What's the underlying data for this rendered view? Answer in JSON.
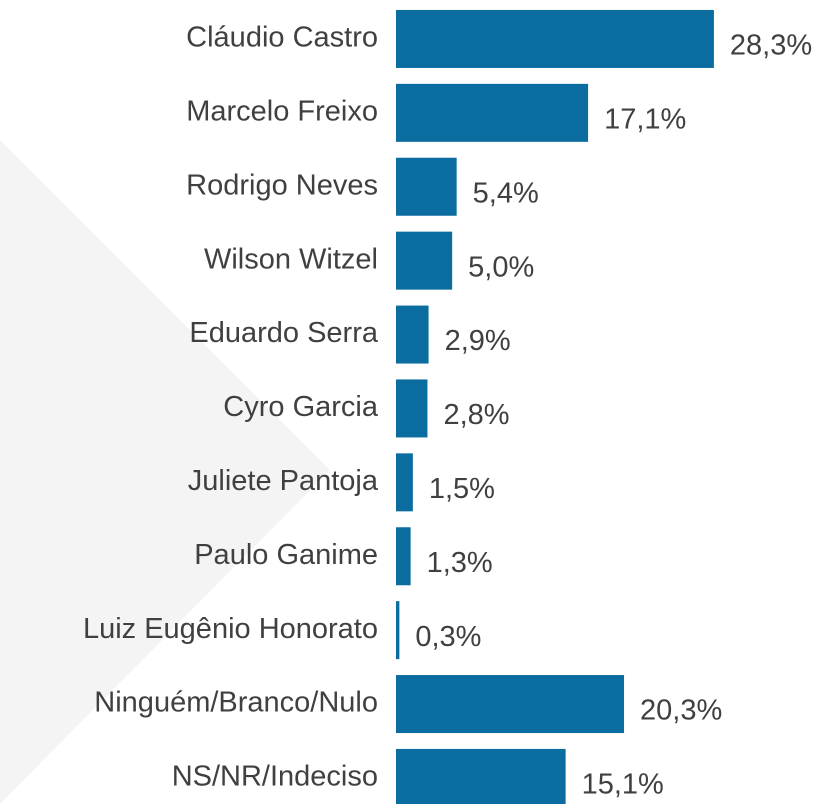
{
  "chart_data": {
    "type": "barh",
    "categories": [
      "Cláudio Castro",
      "Marcelo Freixo",
      "Rodrigo Neves",
      "Wilson Witzel",
      "Eduardo Serra",
      "Cyro Garcia",
      "Juliete Pantoja",
      "Paulo Ganime",
      "Luiz Eugênio Honorato",
      "Ninguém/Branco/Nulo",
      "NS/NR/Indeciso"
    ],
    "values": [
      28.3,
      17.1,
      5.4,
      5.0,
      2.9,
      2.8,
      1.5,
      1.3,
      0.3,
      20.3,
      15.1
    ],
    "value_labels": [
      "28,3%",
      "17,1%",
      "5,4%",
      "5,0%",
      "2,9%",
      "2,8%",
      "1,5%",
      "1,3%",
      "0,3%",
      "20,3%",
      "15,1%"
    ],
    "color": "#0b6d9f",
    "xlim": [
      0,
      30
    ]
  }
}
